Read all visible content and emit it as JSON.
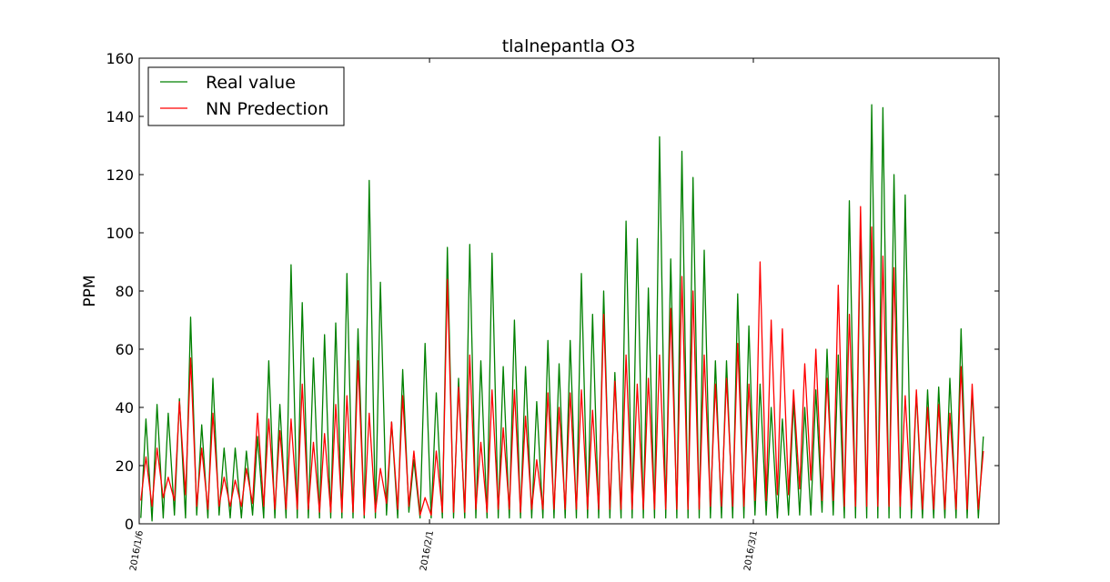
{
  "chart_data": {
    "type": "line",
    "title": "tlalnepantla O3",
    "xlabel": "",
    "ylabel": "PPM",
    "ylim": [
      0,
      160
    ],
    "yticks": [
      0,
      20,
      40,
      60,
      80,
      100,
      120,
      140,
      160
    ],
    "xlim": [
      "2016-01-06",
      "2016-03-23"
    ],
    "xtick_dates": [
      "2016-01-06",
      "2016-02-01",
      "2016-03-01"
    ],
    "xtick_labels": [
      "2016/1/6",
      "2016/2/1",
      "2016/3/1"
    ],
    "legend_location": "upper-left",
    "grid": false,
    "series": [
      {
        "name": "Real value",
        "color": "#008000",
        "sampling": "daily minimum and daily peak, in chronological order",
        "points": [
          [
            "2016-01-06",
            2,
            36
          ],
          [
            "2016-01-07",
            1,
            41
          ],
          [
            "2016-01-08",
            2,
            38
          ],
          [
            "2016-01-09",
            3,
            43
          ],
          [
            "2016-01-10",
            2,
            71
          ],
          [
            "2016-01-11",
            3,
            34
          ],
          [
            "2016-01-12",
            2,
            50
          ],
          [
            "2016-01-13",
            3,
            26
          ],
          [
            "2016-01-14",
            2,
            26
          ],
          [
            "2016-01-15",
            2,
            25
          ],
          [
            "2016-01-16",
            3,
            30
          ],
          [
            "2016-01-17",
            2,
            56
          ],
          [
            "2016-01-18",
            2,
            41
          ],
          [
            "2016-01-19",
            2,
            89
          ],
          [
            "2016-01-20",
            2,
            76
          ],
          [
            "2016-01-21",
            2,
            57
          ],
          [
            "2016-01-22",
            2,
            65
          ],
          [
            "2016-01-23",
            2,
            69
          ],
          [
            "2016-01-24",
            2,
            86
          ],
          [
            "2016-01-25",
            2,
            67
          ],
          [
            "2016-01-26",
            2,
            118
          ],
          [
            "2016-01-27",
            2,
            83
          ],
          [
            "2016-01-28",
            3,
            35
          ],
          [
            "2016-01-29",
            2,
            53
          ],
          [
            "2016-01-30",
            4,
            22
          ],
          [
            "2016-01-31",
            2,
            62
          ],
          [
            "2016-02-01",
            2,
            45
          ],
          [
            "2016-02-02",
            2,
            95
          ],
          [
            "2016-02-03",
            2,
            50
          ],
          [
            "2016-02-04",
            2,
            96
          ],
          [
            "2016-02-05",
            2,
            56
          ],
          [
            "2016-02-06",
            2,
            93
          ],
          [
            "2016-02-07",
            2,
            54
          ],
          [
            "2016-02-08",
            2,
            70
          ],
          [
            "2016-02-09",
            2,
            54
          ],
          [
            "2016-02-10",
            2,
            42
          ],
          [
            "2016-02-11",
            2,
            63
          ],
          [
            "2016-02-12",
            2,
            55
          ],
          [
            "2016-02-13",
            2,
            63
          ],
          [
            "2016-02-14",
            2,
            86
          ],
          [
            "2016-02-15",
            2,
            72
          ],
          [
            "2016-02-16",
            2,
            80
          ],
          [
            "2016-02-17",
            2,
            52
          ],
          [
            "2016-02-18",
            2,
            104
          ],
          [
            "2016-02-19",
            2,
            98
          ],
          [
            "2016-02-20",
            2,
            81
          ],
          [
            "2016-02-21",
            2,
            133
          ],
          [
            "2016-02-22",
            2,
            91
          ],
          [
            "2016-02-23",
            2,
            128
          ],
          [
            "2016-02-24",
            2,
            119
          ],
          [
            "2016-02-25",
            2,
            94
          ],
          [
            "2016-02-26",
            2,
            56
          ],
          [
            "2016-02-27",
            2,
            56
          ],
          [
            "2016-02-28",
            2,
            79
          ],
          [
            "2016-02-29",
            2,
            68
          ],
          [
            "2016-03-01",
            3,
            48
          ],
          [
            "2016-03-02",
            3,
            40
          ],
          [
            "2016-03-03",
            2,
            36
          ],
          [
            "2016-03-04",
            3,
            42
          ],
          [
            "2016-03-05",
            3,
            40
          ],
          [
            "2016-03-06",
            3,
            46
          ],
          [
            "2016-03-07",
            4,
            60
          ],
          [
            "2016-03-08",
            3,
            58
          ],
          [
            "2016-03-09",
            2,
            111
          ],
          [
            "2016-03-10",
            2,
            102
          ],
          [
            "2016-03-11",
            2,
            144
          ],
          [
            "2016-03-12",
            2,
            143
          ],
          [
            "2016-03-13",
            2,
            120
          ],
          [
            "2016-03-14",
            2,
            113
          ],
          [
            "2016-03-15",
            2,
            45
          ],
          [
            "2016-03-16",
            2,
            46
          ],
          [
            "2016-03-17",
            2,
            47
          ],
          [
            "2016-03-18",
            2,
            50
          ],
          [
            "2016-03-19",
            2,
            67
          ],
          [
            "2016-03-20",
            2,
            46
          ],
          [
            "2016-03-21",
            2,
            30
          ]
        ]
      },
      {
        "name": "NN Predection",
        "color": "#ff0000",
        "sampling": "daily minimum and daily peak, in chronological order",
        "points": [
          [
            "2016-01-06",
            8,
            23
          ],
          [
            "2016-01-07",
            6,
            26
          ],
          [
            "2016-01-08",
            9,
            16
          ],
          [
            "2016-01-09",
            8,
            42
          ],
          [
            "2016-01-10",
            10,
            57
          ],
          [
            "2016-01-11",
            6,
            26
          ],
          [
            "2016-01-12",
            5,
            38
          ],
          [
            "2016-01-13",
            6,
            16
          ],
          [
            "2016-01-14",
            6,
            15
          ],
          [
            "2016-01-15",
            6,
            19
          ],
          [
            "2016-01-16",
            7,
            38
          ],
          [
            "2016-01-17",
            6,
            36
          ],
          [
            "2016-01-18",
            5,
            32
          ],
          [
            "2016-01-19",
            5,
            36
          ],
          [
            "2016-01-20",
            5,
            48
          ],
          [
            "2016-01-21",
            5,
            28
          ],
          [
            "2016-01-22",
            4,
            31
          ],
          [
            "2016-01-23",
            4,
            41
          ],
          [
            "2016-01-24",
            4,
            44
          ],
          [
            "2016-01-25",
            4,
            56
          ],
          [
            "2016-01-26",
            3,
            38
          ],
          [
            "2016-01-27",
            4,
            19
          ],
          [
            "2016-01-28",
            7,
            35
          ],
          [
            "2016-01-29",
            5,
            44
          ],
          [
            "2016-01-30",
            6,
            25
          ],
          [
            "2016-01-31",
            3,
            9
          ],
          [
            "2016-02-01",
            3,
            25
          ],
          [
            "2016-02-02",
            4,
            84
          ],
          [
            "2016-02-03",
            4,
            47
          ],
          [
            "2016-02-04",
            4,
            58
          ],
          [
            "2016-02-05",
            5,
            28
          ],
          [
            "2016-02-06",
            4,
            46
          ],
          [
            "2016-02-07",
            5,
            33
          ],
          [
            "2016-02-08",
            5,
            46
          ],
          [
            "2016-02-09",
            4,
            37
          ],
          [
            "2016-02-10",
            5,
            22
          ],
          [
            "2016-02-11",
            5,
            45
          ],
          [
            "2016-02-12",
            5,
            40
          ],
          [
            "2016-02-13",
            5,
            45
          ],
          [
            "2016-02-14",
            5,
            46
          ],
          [
            "2016-02-15",
            5,
            39
          ],
          [
            "2016-02-16",
            5,
            72
          ],
          [
            "2016-02-17",
            5,
            49
          ],
          [
            "2016-02-18",
            5,
            58
          ],
          [
            "2016-02-19",
            5,
            48
          ],
          [
            "2016-02-20",
            5,
            50
          ],
          [
            "2016-02-21",
            5,
            58
          ],
          [
            "2016-02-22",
            5,
            74
          ],
          [
            "2016-02-23",
            5,
            85
          ],
          [
            "2016-02-24",
            5,
            80
          ],
          [
            "2016-02-25",
            5,
            58
          ],
          [
            "2016-02-26",
            6,
            48
          ],
          [
            "2016-02-27",
            6,
            50
          ],
          [
            "2016-02-28",
            6,
            62
          ],
          [
            "2016-02-29",
            6,
            48
          ],
          [
            "2016-03-01",
            8,
            90
          ],
          [
            "2016-03-02",
            8,
            70
          ],
          [
            "2016-03-03",
            10,
            67
          ],
          [
            "2016-03-04",
            10,
            46
          ],
          [
            "2016-03-05",
            12,
            55
          ],
          [
            "2016-03-06",
            15,
            60
          ],
          [
            "2016-03-07",
            8,
            50
          ],
          [
            "2016-03-08",
            8,
            82
          ],
          [
            "2016-03-09",
            6,
            72
          ],
          [
            "2016-03-10",
            6,
            109
          ],
          [
            "2016-03-11",
            6,
            102
          ],
          [
            "2016-03-12",
            6,
            92
          ],
          [
            "2016-03-13",
            6,
            88
          ],
          [
            "2016-03-14",
            6,
            44
          ],
          [
            "2016-03-15",
            5,
            46
          ],
          [
            "2016-03-16",
            5,
            40
          ],
          [
            "2016-03-17",
            5,
            41
          ],
          [
            "2016-03-18",
            5,
            38
          ],
          [
            "2016-03-19",
            5,
            54
          ],
          [
            "2016-03-20",
            5,
            48
          ],
          [
            "2016-03-21",
            5,
            25
          ]
        ]
      }
    ]
  }
}
